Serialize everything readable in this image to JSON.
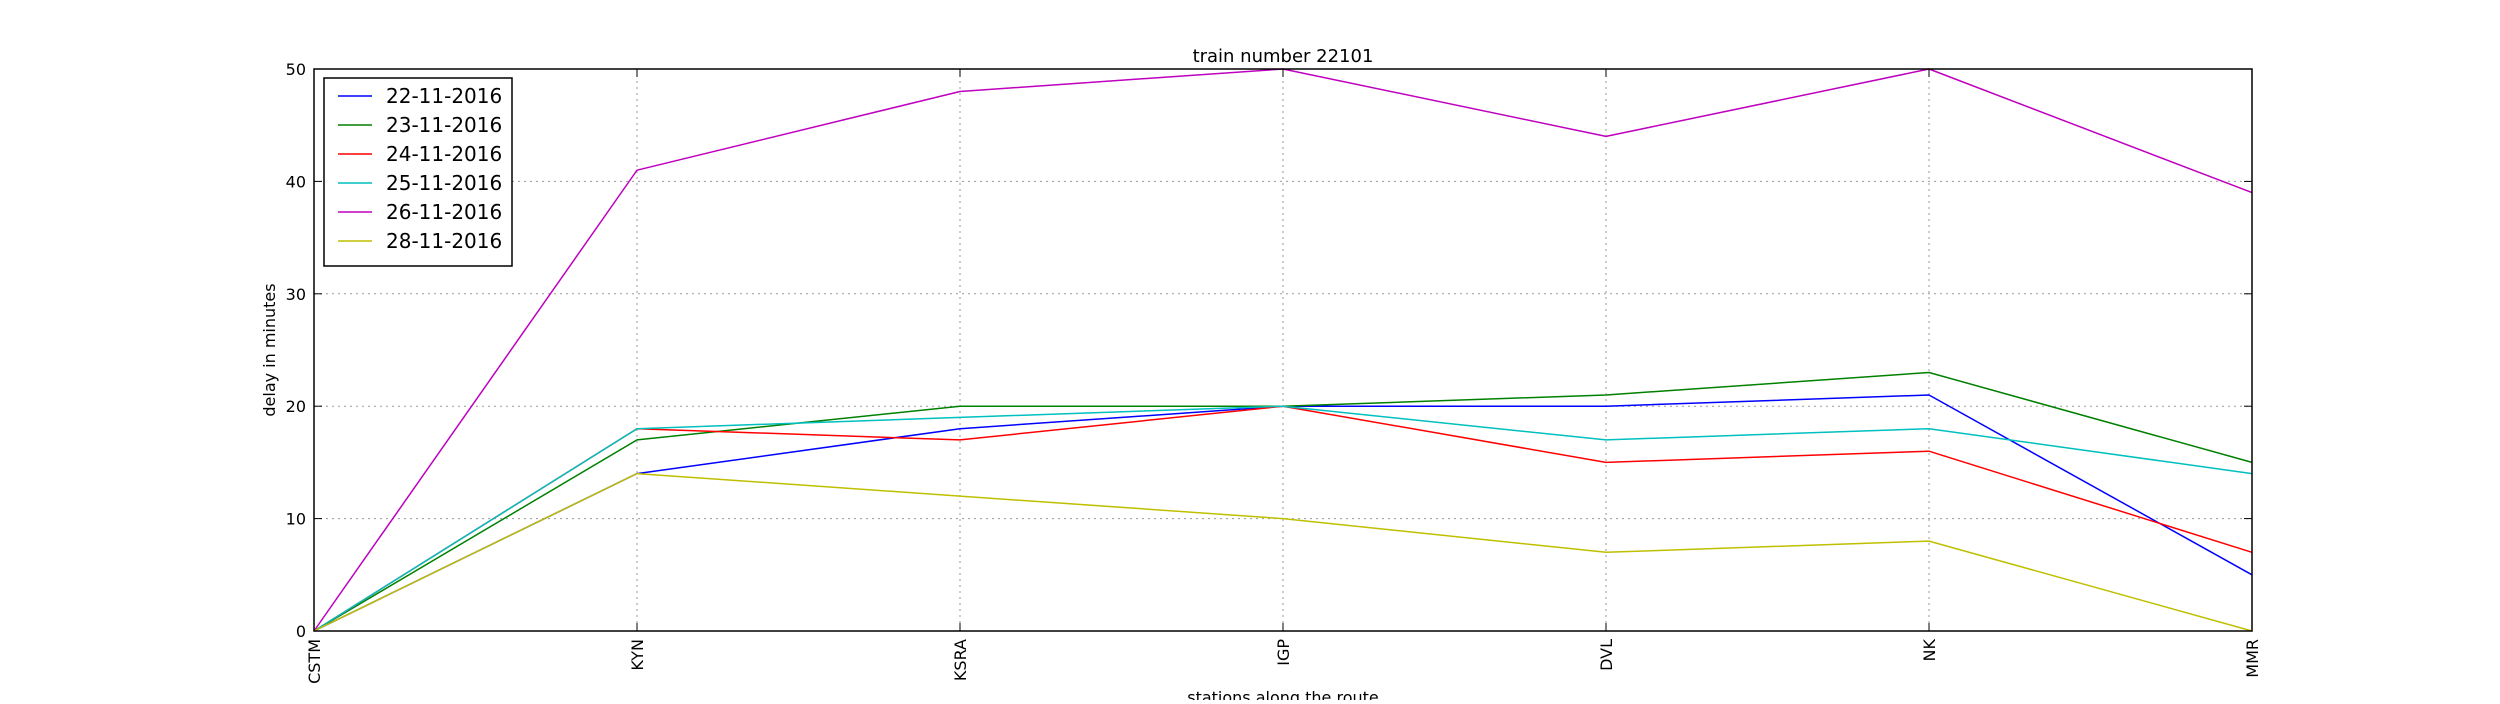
{
  "chart_data": {
    "type": "line",
    "title": "train number 22101",
    "xlabel": "stations along the route",
    "ylabel": "delay in minutes",
    "categories": [
      "CSTM",
      "KYN",
      "KSRA",
      "IGP",
      "DVL",
      "NK",
      "MMR"
    ],
    "ylim": [
      0,
      50
    ],
    "yticks": [
      0,
      10,
      20,
      30,
      40,
      50
    ],
    "grid": true,
    "legend_position": "top-left",
    "series": [
      {
        "name": "22-11-2016",
        "color": "#0000ff",
        "values": [
          0,
          14,
          18,
          20,
          20,
          21,
          5
        ]
      },
      {
        "name": "23-11-2016",
        "color": "#008000",
        "values": [
          0,
          17,
          20,
          20,
          21,
          23,
          15
        ]
      },
      {
        "name": "24-11-2016",
        "color": "#ff0000",
        "values": [
          0,
          18,
          17,
          20,
          15,
          16,
          7
        ]
      },
      {
        "name": "25-11-2016",
        "color": "#00bfbf",
        "values": [
          0,
          18,
          19,
          20,
          17,
          18,
          14
        ]
      },
      {
        "name": "26-11-2016",
        "color": "#bf00bf",
        "values": [
          0,
          41,
          48,
          50,
          44,
          50,
          39
        ]
      },
      {
        "name": "28-11-2016",
        "color": "#bfbf00",
        "values": [
          0,
          14,
          12,
          10,
          7,
          8,
          0
        ]
      }
    ]
  }
}
